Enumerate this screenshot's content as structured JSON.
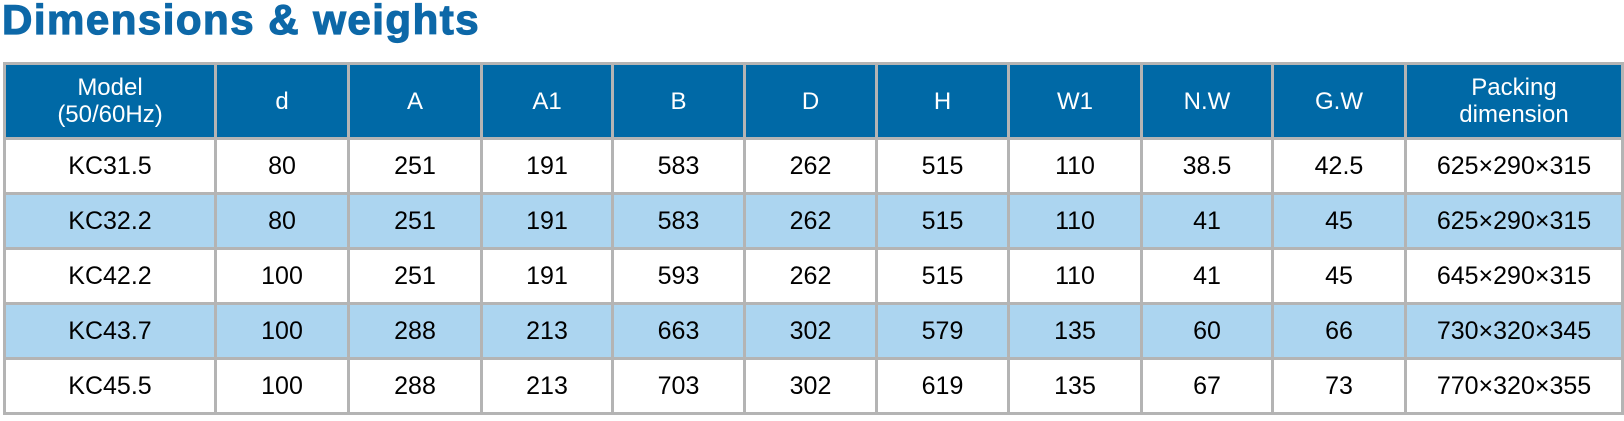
{
  "title": "Dimensions & weights",
  "table": {
    "header": [
      "Model\n(50/60Hz)",
      "d",
      "A",
      "A1",
      "B",
      "D",
      "H",
      "W1",
      "N.W",
      "G.W",
      "Packing\ndimension"
    ],
    "rows": [
      [
        "KC31.5",
        "80",
        "251",
        "191",
        "583",
        "262",
        "515",
        "110",
        "38.5",
        "42.5",
        "625×290×315"
      ],
      [
        "KC32.2",
        "80",
        "251",
        "191",
        "583",
        "262",
        "515",
        "110",
        "41",
        "45",
        "625×290×315"
      ],
      [
        "KC42.2",
        "100",
        "251",
        "191",
        "593",
        "262",
        "515",
        "110",
        "41",
        "45",
        "645×290×315"
      ],
      [
        "KC43.7",
        "100",
        "288",
        "213",
        "663",
        "302",
        "579",
        "135",
        "60",
        "66",
        "730×320×345"
      ],
      [
        "KC45.5",
        "100",
        "288",
        "213",
        "703",
        "302",
        "619",
        "135",
        "67",
        "73",
        "770×320×355"
      ]
    ]
  }
}
